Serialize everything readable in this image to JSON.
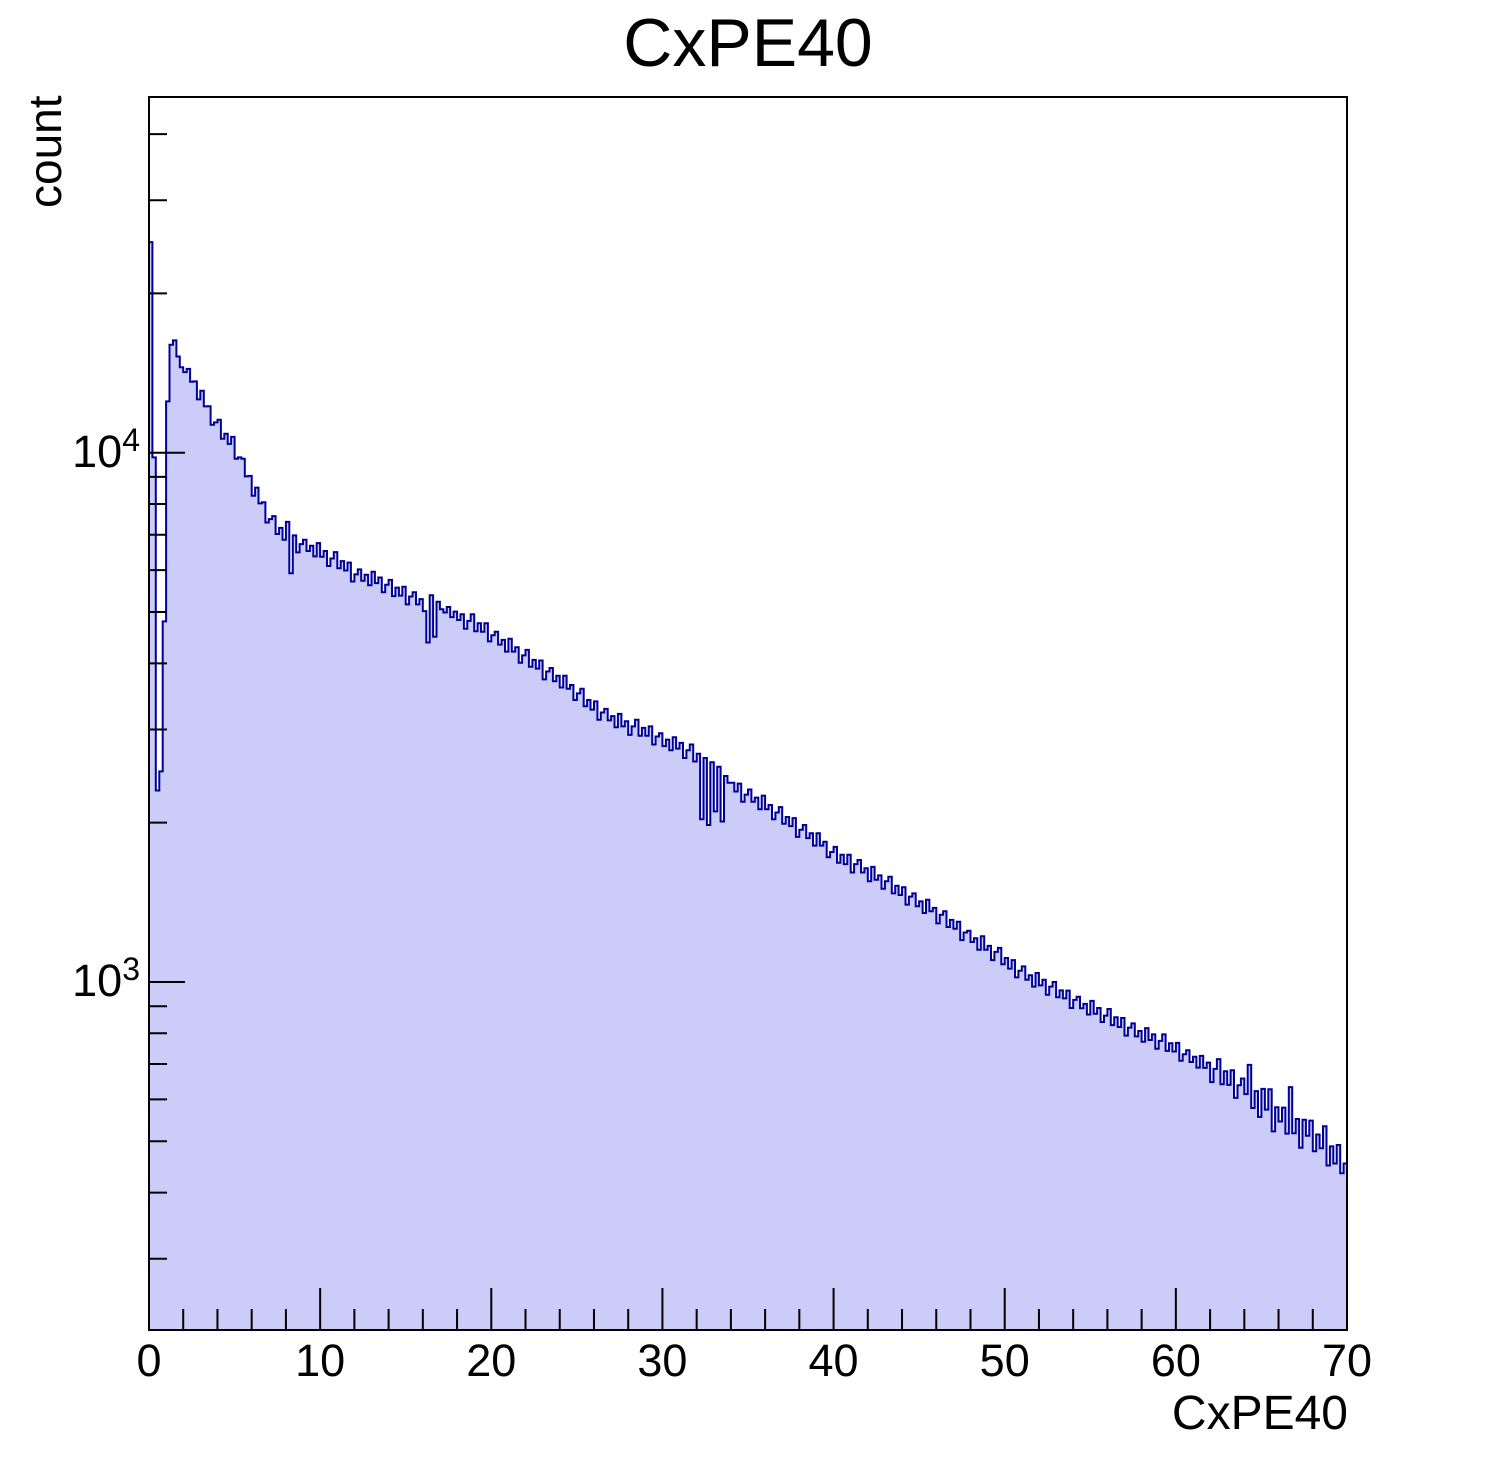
{
  "chart_data": {
    "type": "histogram",
    "title": "CxPE40",
    "xlabel": "CxPE40",
    "ylabel": "count",
    "xlim": [
      0,
      70
    ],
    "ylim": [
      220,
      47000
    ],
    "ylog": true,
    "grid": false,
    "legend": false,
    "x_start": 0,
    "bin_width": 0.2,
    "n_bins": 350,
    "xaxis": {
      "major_ticks": [
        0,
        10,
        20,
        30,
        40,
        50,
        60,
        70
      ],
      "tick_labels": [
        "0",
        "10",
        "20",
        "30",
        "40",
        "50",
        "60",
        "70"
      ],
      "minor_tick_step": 2
    },
    "yaxis": {
      "labeled_ticks": [
        {
          "value": 10000,
          "base": "10",
          "exp": "4"
        },
        {
          "value": 1000,
          "base": "10",
          "exp": "3"
        }
      ],
      "minor_ticks": "2-9 per decade"
    },
    "style": {
      "fill_color": "#ccccf9",
      "line_color": "#000099",
      "frame_color": "#000000",
      "text_color": "#000000",
      "background": "#ffffff"
    },
    "bins": [
      25000,
      9800,
      2300,
      2500,
      4800,
      12500,
      16000,
      16300,
      15200,
      14500,
      14200,
      14400,
      13620,
      13640,
      12610,
      13090,
      12230,
      12240,
      11290,
      11410,
      11540,
      10630,
      10860,
      10390,
      10710,
      9740,
      9800,
      9740,
      9020,
      9040,
      8290,
      8590,
      8020,
      8060,
      7380,
      7490,
      7590,
      7020,
      7210,
      6850,
      7400,
      5920,
      6980,
      6480,
      6720,
      6850,
      6520,
      6670,
      6370,
      6750,
      6360,
      6520,
      6110,
      6310,
      6490,
      6050,
      6240,
      5990,
      6200,
      5710,
      5890,
      6020,
      5730,
      5880,
      5620,
      5960,
      5670,
      5810,
      5450,
      5630,
      5750,
      5360,
      5560,
      5370,
      5580,
      5170,
      5350,
      5450,
      5170,
      5290,
      5020,
      4380,
      5380,
      4490,
      5230,
      5060,
      4990,
      5110,
      4890,
      5010,
      4830,
      4950,
      4650,
      4810,
      4950,
      4600,
      4760,
      4590,
      4760,
      4400,
      4520,
      4590,
      4340,
      4430,
      4210,
      4450,
      4210,
      4290,
      4010,
      4140,
      4240,
      3940,
      4060,
      3910,
      4050,
      3730,
      3860,
      3920,
      3700,
      3790,
      3600,
      3790,
      3580,
      3640,
      3410,
      3510,
      3580,
      3320,
      3410,
      3270,
      3390,
      3130,
      3230,
      3280,
      3120,
      3180,
      3030,
      3210,
      3040,
      3110,
      2930,
      3040,
      3130,
      2920,
      3020,
      2920,
      3040,
      2810,
      2910,
      2950,
      2790,
      2870,
      2740,
      2900,
      2760,
      2830,
      2650,
      2740,
      2810,
      2610,
      2700,
      2030,
      2650,
      1980,
      2600,
      2100,
      2550,
      2010,
      2450,
      2380,
      2380,
      2290,
      2370,
      2190,
      2260,
      2310,
      2190,
      2230,
      2120,
      2250,
      2120,
      2160,
      2030,
      2090,
      2140,
      1990,
      2050,
      1970,
      2040,
      1880,
      1940,
      1980,
      1870,
      1910,
      1810,
      1910,
      1810,
      1840,
      1720,
      1760,
      1800,
      1680,
      1740,
      1670,
      1740,
      1610,
      1670,
      1700,
      1610,
      1640,
      1550,
      1650,
      1560,
      1590,
      1500,
      1550,
      1580,
      1470,
      1520,
      1460,
      1510,
      1400,
      1450,
      1470,
      1390,
      1420,
      1350,
      1430,
      1360,
      1380,
      1290,
      1340,
      1360,
      1270,
      1310,
      1260,
      1300,
      1200,
      1240,
      1250,
      1190,
      1210,
      1150,
      1220,
      1150,
      1170,
      1100,
      1140,
      1160,
      1080,
      1110,
      1060,
      1100,
      1020,
      1050,
      1070,
      1010,
      1030,
      980,
      1040,
      985,
      1010,
      946,
      980,
      1000,
      936,
      964,
      931,
      963,
      893,
      925,
      938,
      892,
      909,
      868,
      921,
      871,
      893,
      840,
      864,
      889,
      829,
      858,
      822,
      855,
      792,
      820,
      835,
      789,
      808,
      771,
      818,
      777,
      796,
      748,
      774,
      796,
      741,
      766,
      739,
      767,
      710,
      730,
      743,
      706,
      722,
      689,
      725,
      688,
      704,
      647,
      685,
      715,
      641,
      678,
      639,
      681,
      604,
      638,
      657,
      614,
      697,
      578,
      622,
      556,
      628,
      574,
      627,
      522,
      580,
      545,
      579,
      517,
      633,
      518,
      551,
      486,
      549,
      512,
      547,
      479,
      515,
      485,
      534,
      450,
      489,
      454,
      492,
      435,
      454
    ]
  }
}
